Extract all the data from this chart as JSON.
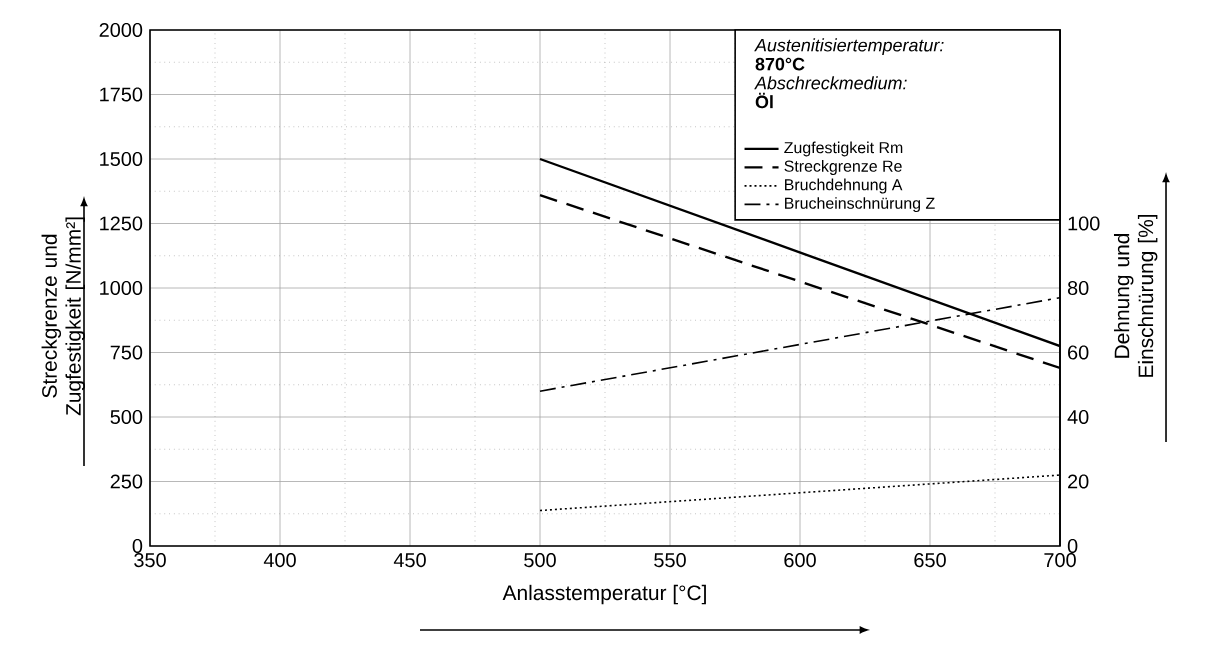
{
  "chart_data": {
    "type": "line",
    "xlabel": "Anlasstemperatur [°C]",
    "ylabel": "Streckgrenze und Zugfestigkeit [N/mm²]",
    "y2label": "Dehnung und Einschnürung [%]",
    "xlim": [
      350,
      700
    ],
    "xticks": [
      350,
      400,
      450,
      500,
      550,
      600,
      650,
      700
    ],
    "ylim": [
      0,
      2000
    ],
    "yticks": [
      0,
      250,
      500,
      750,
      1000,
      1250,
      1500,
      1750,
      2000
    ],
    "y2lim": [
      0,
      160
    ],
    "y2ticks": [
      0,
      20,
      40,
      60,
      80,
      100
    ],
    "x": [
      500,
      700
    ],
    "grid": true,
    "legend": "top right",
    "marker": "none",
    "annotations": [
      "Austenitisiertemperatur:",
      "870°C",
      "Abschreckmedium:",
      "Öl"
    ],
    "series": [
      {
        "name": "Zugfestigkeit Rm",
        "color": "#000000",
        "line_style": "solid",
        "values": [
          1500,
          775
        ]
      },
      {
        "name": "Streckgrenze Re",
        "color": "#000000",
        "line_style": "dashed",
        "values": [
          1360,
          690
        ]
      },
      {
        "name": "Bruchdehnung A",
        "color": "#000000",
        "line_style": "dotted",
        "axis": "y2",
        "values": [
          11,
          22
        ]
      },
      {
        "name": "Brucheinschnürung Z",
        "color": "#000000",
        "line_style": "dashdot",
        "axis": "y2",
        "values": [
          48,
          77
        ]
      }
    ]
  }
}
